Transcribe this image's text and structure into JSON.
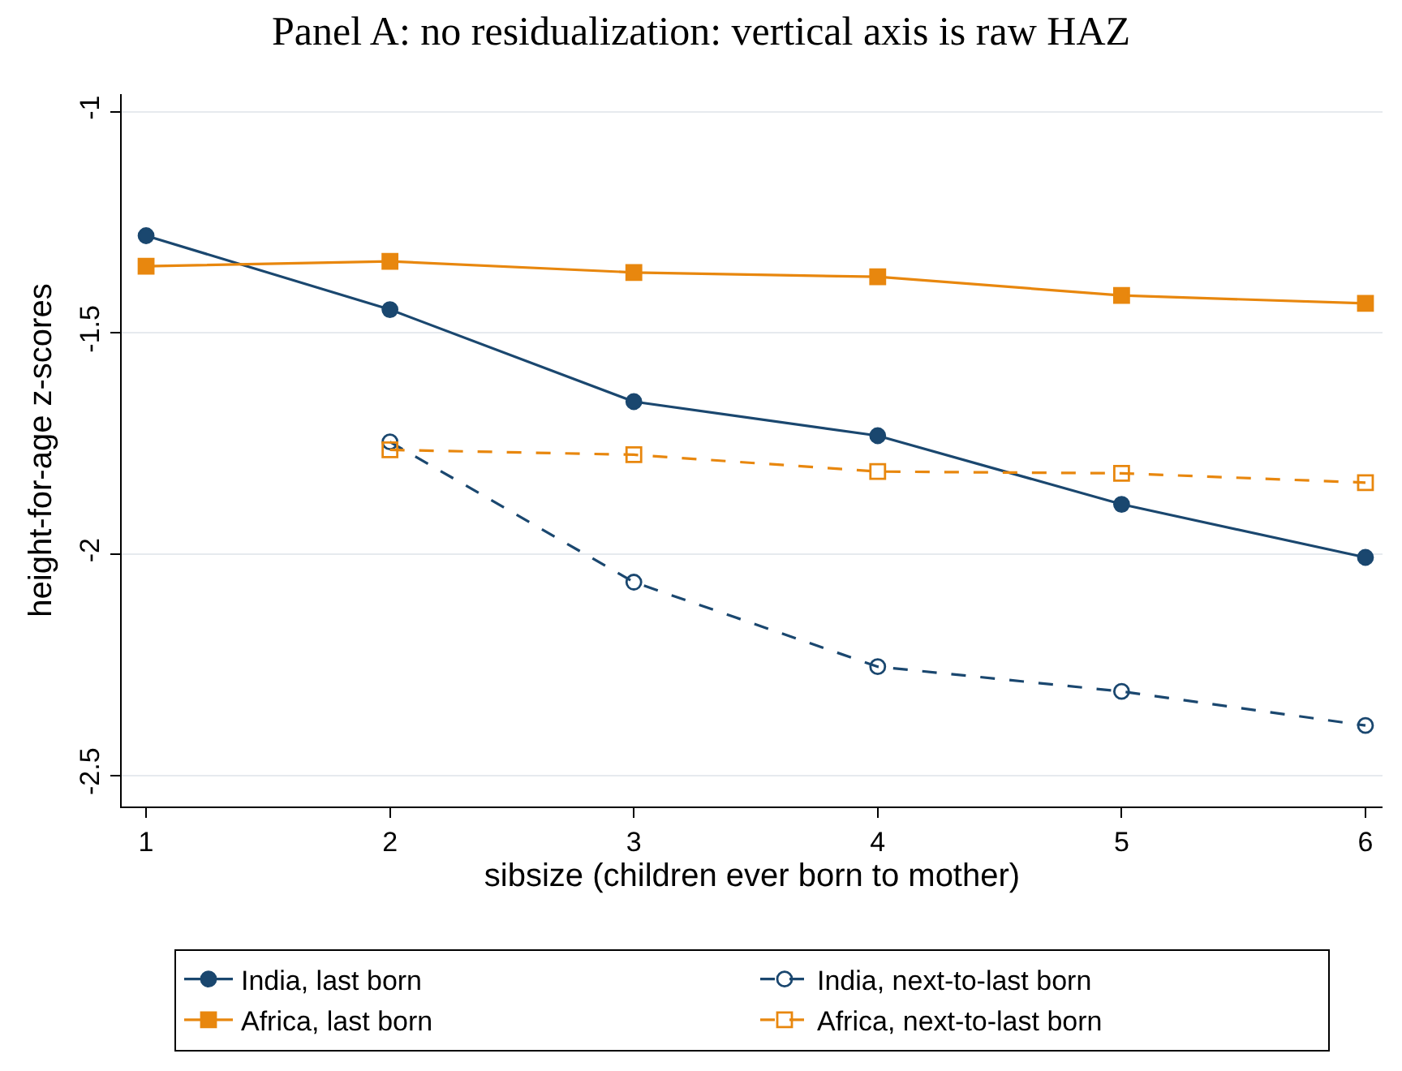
{
  "chart_data": {
    "type": "line",
    "title": "Panel A: no residualization: vertical axis is raw HAZ",
    "xlabel": "sibsize (children ever born to mother)",
    "ylabel": "height-for-age z-scores",
    "x": [
      1,
      2,
      3,
      4,
      5,
      6
    ],
    "series": [
      {
        "name": "India, last born",
        "color": "#1a476f",
        "marker": "circle",
        "line_style": "solid",
        "values": [
          -1.28,
          -1.447,
          -1.655,
          -1.732,
          -1.887,
          -2.007
        ]
      },
      {
        "name": "India, next-to-last born",
        "color": "#1a476f",
        "marker": "circle-open",
        "line_style": "dashed",
        "values": [
          null,
          -1.746,
          -2.063,
          -2.254,
          -2.31,
          -2.387
        ]
      },
      {
        "name": "Africa, last born",
        "color": "#e8870e",
        "marker": "square",
        "line_style": "solid",
        "values": [
          -1.349,
          -1.338,
          -1.363,
          -1.373,
          -1.415,
          -1.433
        ]
      },
      {
        "name": "Africa, next-to-last born",
        "color": "#e8870e",
        "marker": "square-open",
        "line_style": "dashed",
        "values": [
          null,
          -1.764,
          -1.775,
          -1.813,
          -1.817,
          -1.838
        ]
      }
    ],
    "xlim": [
      0.9,
      6.07
    ],
    "xticks": [
      1,
      2,
      3,
      4,
      5,
      6
    ],
    "ylim": [
      -2.57,
      -0.96
    ],
    "yticks": [
      -2.5,
      -2,
      -1.5,
      -1
    ],
    "grid": "y",
    "legend": "bottom"
  }
}
